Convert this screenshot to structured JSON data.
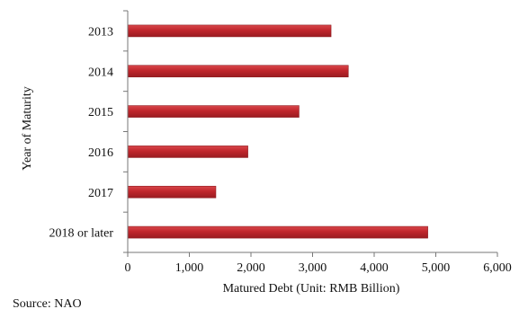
{
  "chart_data": {
    "type": "bar",
    "orientation": "horizontal",
    "categories": [
      "2013",
      "2014",
      "2015",
      "2016",
      "2017",
      "2018 or later"
    ],
    "values": [
      3300,
      3580,
      2780,
      1950,
      1430,
      4870
    ],
    "xlabel": "Matured Debt (Unit: RMB Billion)",
    "ylabel": "Year of Maturity",
    "xlim": [
      0,
      6000
    ],
    "xticks": [
      0,
      1000,
      2000,
      3000,
      4000,
      5000,
      6000
    ],
    "xtick_labels": [
      "0",
      "1,000",
      "2,000",
      "3,000",
      "4,000",
      "5,000",
      "6,000"
    ],
    "grid": false,
    "bar_color": "#c0262c",
    "bar_edge_color": "#8e1a1f"
  },
  "source": "Source: NAO"
}
